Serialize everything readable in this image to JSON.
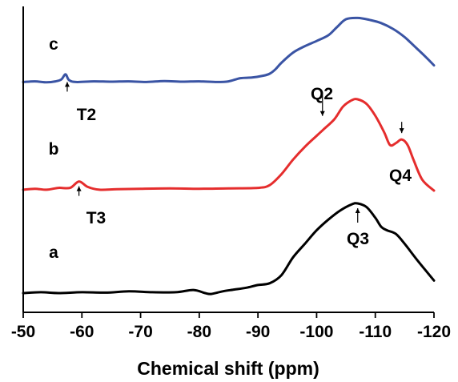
{
  "chart_data": {
    "type": "line",
    "title": "",
    "xlabel": "Chemical shift (ppm)",
    "ylabel": "",
    "xlim": [
      -50,
      -120
    ],
    "x_reversed": true,
    "y_ticks_shown": false,
    "grid": false,
    "legend": "none",
    "x_ticks": [
      -50,
      -60,
      -70,
      -80,
      -90,
      -100,
      -110,
      -120
    ],
    "x_tick_labels": [
      "-50",
      "-60",
      "-70",
      "-80",
      "-90",
      "-100",
      "-110",
      "-120"
    ],
    "series": [
      {
        "name": "c",
        "color": "#3a54a4",
        "points": [
          [
            -50,
            0.02
          ],
          [
            -52,
            0.03
          ],
          [
            -54,
            0.015
          ],
          [
            -55.5,
            0.03
          ],
          [
            -56.5,
            0.06
          ],
          [
            -57.2,
            0.14
          ],
          [
            -57.8,
            0.05
          ],
          [
            -59,
            0.02
          ],
          [
            -62,
            0.03
          ],
          [
            -65,
            0.025
          ],
          [
            -68,
            0.03
          ],
          [
            -71,
            0.02
          ],
          [
            -74,
            0.035
          ],
          [
            -77,
            0.025
          ],
          [
            -80,
            0.03
          ],
          [
            -83,
            0.02
          ],
          [
            -85,
            0.03
          ],
          [
            -87,
            0.08
          ],
          [
            -89,
            0.09
          ],
          [
            -91,
            0.12
          ],
          [
            -92,
            0.15
          ],
          [
            -93,
            0.22
          ],
          [
            -94,
            0.32
          ],
          [
            -96,
            0.48
          ],
          [
            -98,
            0.58
          ],
          [
            -100,
            0.66
          ],
          [
            -102,
            0.75
          ],
          [
            -103.5,
            0.88
          ],
          [
            -105,
            1.0
          ],
          [
            -107,
            1.02
          ],
          [
            -109,
            0.99
          ],
          [
            -111,
            0.94
          ],
          [
            -113,
            0.85
          ],
          [
            -115,
            0.72
          ],
          [
            -117,
            0.55
          ],
          [
            -118.5,
            0.42
          ],
          [
            -120,
            0.28
          ]
        ]
      },
      {
        "name": "b",
        "color": "#e52d2d",
        "points": [
          [
            -50,
            0.01
          ],
          [
            -52,
            0.02
          ],
          [
            -54,
            0.01
          ],
          [
            -56,
            0.03
          ],
          [
            -58,
            0.03
          ],
          [
            -59.5,
            0.1
          ],
          [
            -61,
            0.04
          ],
          [
            -63,
            0.01
          ],
          [
            -66,
            0.015
          ],
          [
            -70,
            0.02
          ],
          [
            -75,
            0.025
          ],
          [
            -80,
            0.02
          ],
          [
            -85,
            0.025
          ],
          [
            -90,
            0.03
          ],
          [
            -92,
            0.06
          ],
          [
            -94,
            0.18
          ],
          [
            -96,
            0.34
          ],
          [
            -98,
            0.48
          ],
          [
            -100,
            0.6
          ],
          [
            -101,
            0.66
          ],
          [
            -103,
            0.78
          ],
          [
            -104.5,
            0.92
          ],
          [
            -106,
            0.99
          ],
          [
            -107,
            1.0
          ],
          [
            -108.5,
            0.95
          ],
          [
            -110,
            0.82
          ],
          [
            -111.5,
            0.64
          ],
          [
            -112.5,
            0.5
          ],
          [
            -113.5,
            0.52
          ],
          [
            -114.5,
            0.56
          ],
          [
            -115.5,
            0.5
          ],
          [
            -116.5,
            0.34
          ],
          [
            -118,
            0.12
          ],
          [
            -120,
            0.0
          ]
        ]
      },
      {
        "name": "a",
        "color": "#000000",
        "points": [
          [
            -50,
            0.0
          ],
          [
            -53,
            0.01
          ],
          [
            -56,
            0.0
          ],
          [
            -60,
            0.01
          ],
          [
            -64,
            0.005
          ],
          [
            -68,
            0.02
          ],
          [
            -72,
            0.01
          ],
          [
            -76,
            0.01
          ],
          [
            -79,
            0.035
          ],
          [
            -81,
            0.0
          ],
          [
            -82,
            -0.01
          ],
          [
            -84,
            0.02
          ],
          [
            -86,
            0.04
          ],
          [
            -88,
            0.06
          ],
          [
            -90,
            0.09
          ],
          [
            -92,
            0.11
          ],
          [
            -94,
            0.2
          ],
          [
            -96,
            0.4
          ],
          [
            -98,
            0.55
          ],
          [
            -100,
            0.7
          ],
          [
            -102,
            0.82
          ],
          [
            -104,
            0.92
          ],
          [
            -106,
            0.99
          ],
          [
            -107,
            1.0
          ],
          [
            -108.5,
            0.96
          ],
          [
            -110,
            0.84
          ],
          [
            -111,
            0.74
          ],
          [
            -112,
            0.7
          ],
          [
            -113.5,
            0.66
          ],
          [
            -115,
            0.55
          ],
          [
            -117,
            0.38
          ],
          [
            -119,
            0.22
          ],
          [
            -120,
            0.14
          ]
        ]
      }
    ],
    "annotations": [
      {
        "text": "T2",
        "x": -57.5,
        "series": "c"
      },
      {
        "text": "T3",
        "x": -59.5,
        "series": "b"
      },
      {
        "text": "Q2",
        "x": -101,
        "series": "b"
      },
      {
        "text": "Q4",
        "x": -114.5,
        "series": "b"
      },
      {
        "text": "Q3",
        "x": -107,
        "series": "a"
      }
    ]
  }
}
